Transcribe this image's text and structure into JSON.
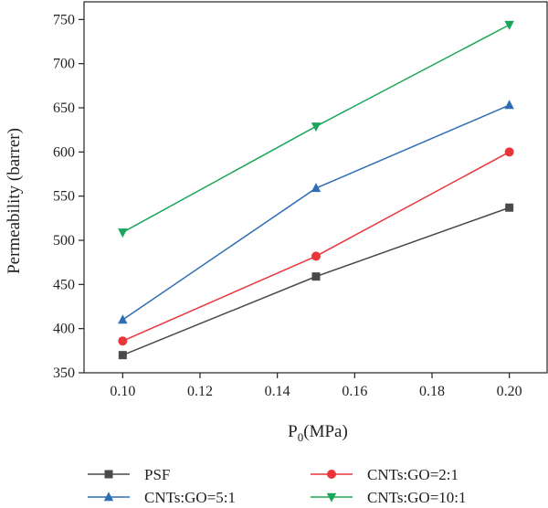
{
  "chart_data": {
    "type": "line",
    "xlabel": "P",
    "xlabel_sub": "0",
    "xlabel_unit": "(MPa)",
    "ylabel": "Permeability (barrer)",
    "x": [
      0.1,
      0.15,
      0.2
    ],
    "xlim": [
      0.09,
      0.21
    ],
    "ylim": [
      350,
      770
    ],
    "xticks": [
      0.1,
      0.12,
      0.14,
      0.16,
      0.18,
      0.2
    ],
    "xtick_labels": [
      "0.10",
      "0.12",
      "0.14",
      "0.16",
      "0.18",
      "0.20"
    ],
    "yticks": [
      350,
      400,
      450,
      500,
      550,
      600,
      650,
      700,
      750
    ],
    "ytick_labels": [
      "350",
      "400",
      "450",
      "500",
      "550",
      "600",
      "650",
      "700",
      "750"
    ],
    "grid": false,
    "legend_position": "bottom",
    "series": [
      {
        "name": "PSF",
        "values": [
          370,
          459,
          537
        ],
        "color": "#4a4a4a",
        "marker": "square"
      },
      {
        "name": "CNTs:GO=2:1",
        "values": [
          386,
          482,
          600
        ],
        "color": "#e8363a",
        "marker": "circle"
      },
      {
        "name": "CNTs:GO=5:1",
        "values": [
          410,
          559,
          653
        ],
        "color": "#2f6db5",
        "marker": "triangle-up"
      },
      {
        "name": "CNTs:GO=10:1",
        "values": [
          509,
          629,
          744
        ],
        "color": "#1aa55a",
        "marker": "triangle-down"
      }
    ]
  }
}
